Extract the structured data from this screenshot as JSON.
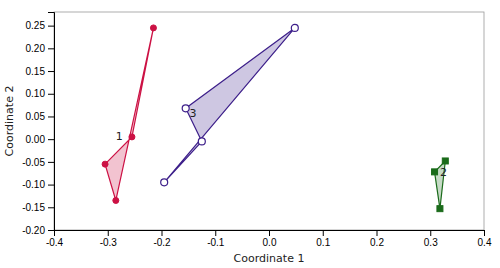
{
  "chart_data": {
    "type": "polygon",
    "xlabel": "Coordinate 1",
    "ylabel": "Coordinate 2",
    "xlim": [
      -0.4,
      0.4
    ],
    "ylim": [
      -0.2,
      0.28
    ],
    "xticks": [
      -0.4,
      -0.3,
      -0.2,
      -0.1,
      {
        "value": 0,
        "label": "0.0"
      },
      0.1,
      0.2,
      0.3,
      0.4
    ],
    "yticks": [
      {
        "value": -0.2,
        "label": "-0.20"
      },
      -0.15,
      {
        "value": -0.1,
        "label": "-0.10"
      },
      -0.05,
      {
        "value": 0,
        "label": "0.00"
      },
      0.05,
      {
        "value": 0.1,
        "label": "0.10"
      },
      0.15,
      {
        "value": 0.2,
        "label": "0.20"
      },
      0.25
    ],
    "series": [
      {
        "color": "#cc1144",
        "marker": "circle",
        "x": [
          -0.215,
          -0.255,
          -0.305,
          -0.285
        ],
        "values": [
          0.245,
          0.005,
          -0.055,
          -0.135
        ]
      },
      {
        "color": "#1a6b1a",
        "marker": "square",
        "x": [
          0.328,
          0.308,
          0.318
        ],
        "values": [
          -0.048,
          -0.072,
          -0.153
        ]
      },
      {
        "color": "#3d1f8a",
        "marker": "circle-open",
        "x": [
          -0.195,
          -0.125,
          -0.155,
          0.048
        ],
        "values": [
          -0.095,
          -0.005,
          0.068,
          0.245
        ]
      }
    ],
    "annotations": [
      {
        "text": "1",
        "x": -0.285,
        "y": 0.005
      },
      {
        "text": "2",
        "x": 0.318,
        "y": -0.075
      },
      {
        "text": "3",
        "x": -0.148,
        "y": 0.055
      }
    ]
  }
}
